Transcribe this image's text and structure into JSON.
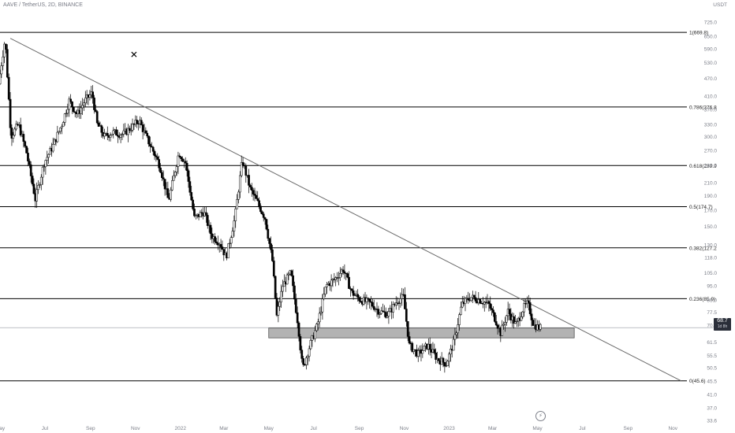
{
  "header": {
    "title": "AAVE / TetherUS, 2D, BINANCE",
    "quote": "USDT"
  },
  "last_price": {
    "value": "68.7",
    "countdown": "1d 8h"
  },
  "colors": {
    "up": "#ffffff",
    "down": "#000000",
    "wick": "#000000",
    "fib_line": "#000000",
    "trendline": "#6b6b6b",
    "zone_fill": "#9a9a9a",
    "grid_text": "#7c7f89"
  },
  "chart_data": {
    "type": "candlestick",
    "symbol": "AAVE / TetherUS",
    "interval": "2D",
    "exchange": "BINANCE",
    "y_scale": "log",
    "ylim": [
      33.6,
      790
    ],
    "y_ticks": [
      "725.0",
      "650.0",
      "590.0",
      "530.0",
      "470.0",
      "410.0",
      "370.0",
      "330.0",
      "300.0",
      "270.0",
      "240.0",
      "210.0",
      "190.0",
      "170.0",
      "150.0",
      "130.0",
      "118.0",
      "105.0",
      "95.0",
      "85.0",
      "77.5",
      "70.0",
      "61.5",
      "55.5",
      "50.5",
      "45.5",
      "41.0",
      "37.0",
      "33.6"
    ],
    "x_range": [
      "2021-05-01",
      "2023-11-20"
    ],
    "x_ticks": [
      {
        "label": "May",
        "date": "2021-05-01"
      },
      {
        "label": "Jul",
        "date": "2021-07-01"
      },
      {
        "label": "Sep",
        "date": "2021-09-01"
      },
      {
        "label": "Nov",
        "date": "2021-11-01"
      },
      {
        "label": "2022",
        "date": "2022-01-01"
      },
      {
        "label": "Mar",
        "date": "2022-03-01"
      },
      {
        "label": "May",
        "date": "2022-05-01"
      },
      {
        "label": "Jul",
        "date": "2022-07-01"
      },
      {
        "label": "Sep",
        "date": "2022-09-01"
      },
      {
        "label": "Nov",
        "date": "2022-11-01"
      },
      {
        "label": "2023",
        "date": "2023-01-01"
      },
      {
        "label": "Mar",
        "date": "2023-03-01"
      },
      {
        "label": "May",
        "date": "2023-05-01"
      },
      {
        "label": "Jul",
        "date": "2023-07-01"
      },
      {
        "label": "Sep",
        "date": "2023-09-01"
      },
      {
        "label": "Nov",
        "date": "2023-11-01"
      }
    ],
    "fib_levels": [
      {
        "ratio": 1,
        "price": 669.8,
        "label": "1(669.8)"
      },
      {
        "ratio": 0.786,
        "price": 376.8,
        "label": "0.786(376.8"
      },
      {
        "ratio": 0.618,
        "price": 239.9,
        "label": "0.618(239.9"
      },
      {
        "ratio": 0.5,
        "price": 174.7,
        "label": "0.5(174.7)"
      },
      {
        "ratio": 0.382,
        "price": 127.2,
        "label": "0.382(127.2"
      },
      {
        "ratio": 0.236,
        "price": 85.9,
        "label": "0.236(85.9)"
      },
      {
        "ratio": 0,
        "price": 45.6,
        "label": "0(45.6)"
      }
    ],
    "trendline": {
      "start": {
        "date": "2021-05-15",
        "price": 640
      },
      "end": {
        "date": "2023-11-12",
        "price": 45.6
      }
    },
    "support_zone": {
      "start": "2022-05-01",
      "end": "2023-06-20",
      "low": 63.5,
      "high": 68.5
    },
    "current_price_line": 68.7,
    "marker": {
      "date": "2021-10-30",
      "price": 530,
      "symbol": "✕"
    },
    "ohlc_path": [
      {
        "date": "2021-05-01",
        "price": 450
      },
      {
        "date": "2021-05-10",
        "price": 640
      },
      {
        "date": "2021-05-18",
        "price": 300
      },
      {
        "date": "2021-05-28",
        "price": 330
      },
      {
        "date": "2021-06-08",
        "price": 265
      },
      {
        "date": "2021-06-20",
        "price": 185
      },
      {
        "date": "2021-07-02",
        "price": 245
      },
      {
        "date": "2021-07-14",
        "price": 280
      },
      {
        "date": "2021-07-26",
        "price": 330
      },
      {
        "date": "2021-08-05",
        "price": 395
      },
      {
        "date": "2021-08-16",
        "price": 355
      },
      {
        "date": "2021-08-26",
        "price": 395
      },
      {
        "date": "2021-09-05",
        "price": 420
      },
      {
        "date": "2021-09-12",
        "price": 330
      },
      {
        "date": "2021-09-22",
        "price": 300
      },
      {
        "date": "2021-10-03",
        "price": 310
      },
      {
        "date": "2021-10-17",
        "price": 305
      },
      {
        "date": "2021-10-27",
        "price": 320
      },
      {
        "date": "2021-11-08",
        "price": 340
      },
      {
        "date": "2021-11-16",
        "price": 305
      },
      {
        "date": "2021-11-28",
        "price": 265
      },
      {
        "date": "2021-12-06",
        "price": 240
      },
      {
        "date": "2021-12-18",
        "price": 182
      },
      {
        "date": "2022-01-01",
        "price": 265
      },
      {
        "date": "2022-01-10",
        "price": 245
      },
      {
        "date": "2022-01-22",
        "price": 160
      },
      {
        "date": "2022-02-04",
        "price": 168
      },
      {
        "date": "2022-02-14",
        "price": 140
      },
      {
        "date": "2022-02-26",
        "price": 132
      },
      {
        "date": "2022-03-06",
        "price": 118
      },
      {
        "date": "2022-03-18",
        "price": 160
      },
      {
        "date": "2022-03-28",
        "price": 250
      },
      {
        "date": "2022-04-08",
        "price": 200
      },
      {
        "date": "2022-04-18",
        "price": 180
      },
      {
        "date": "2022-04-28",
        "price": 160
      },
      {
        "date": "2022-05-08",
        "price": 115
      },
      {
        "date": "2022-05-14",
        "price": 75
      },
      {
        "date": "2022-05-22",
        "price": 95
      },
      {
        "date": "2022-06-02",
        "price": 105
      },
      {
        "date": "2022-06-12",
        "price": 70
      },
      {
        "date": "2022-06-18",
        "price": 50
      },
      {
        "date": "2022-06-28",
        "price": 60
      },
      {
        "date": "2022-07-08",
        "price": 70
      },
      {
        "date": "2022-07-20",
        "price": 95
      },
      {
        "date": "2022-08-01",
        "price": 100
      },
      {
        "date": "2022-08-12",
        "price": 108
      },
      {
        "date": "2022-08-24",
        "price": 90
      },
      {
        "date": "2022-09-05",
        "price": 85
      },
      {
        "date": "2022-09-18",
        "price": 83
      },
      {
        "date": "2022-09-30",
        "price": 78
      },
      {
        "date": "2022-10-12",
        "price": 76
      },
      {
        "date": "2022-10-25",
        "price": 85
      },
      {
        "date": "2022-11-02",
        "price": 87
      },
      {
        "date": "2022-11-10",
        "price": 60
      },
      {
        "date": "2022-11-22",
        "price": 56
      },
      {
        "date": "2022-12-05",
        "price": 60
      },
      {
        "date": "2022-12-18",
        "price": 54
      },
      {
        "date": "2022-12-30",
        "price": 52
      },
      {
        "date": "2023-01-10",
        "price": 62
      },
      {
        "date": "2023-01-20",
        "price": 82
      },
      {
        "date": "2023-02-01",
        "price": 87
      },
      {
        "date": "2023-02-14",
        "price": 85
      },
      {
        "date": "2023-02-26",
        "price": 82
      },
      {
        "date": "2023-03-08",
        "price": 72
      },
      {
        "date": "2023-03-14",
        "price": 66
      },
      {
        "date": "2023-03-24",
        "price": 78
      },
      {
        "date": "2023-04-04",
        "price": 70
      },
      {
        "date": "2023-04-14",
        "price": 80
      },
      {
        "date": "2023-04-20",
        "price": 83
      },
      {
        "date": "2023-04-28",
        "price": 70
      },
      {
        "date": "2023-05-06",
        "price": 68.7
      }
    ]
  }
}
